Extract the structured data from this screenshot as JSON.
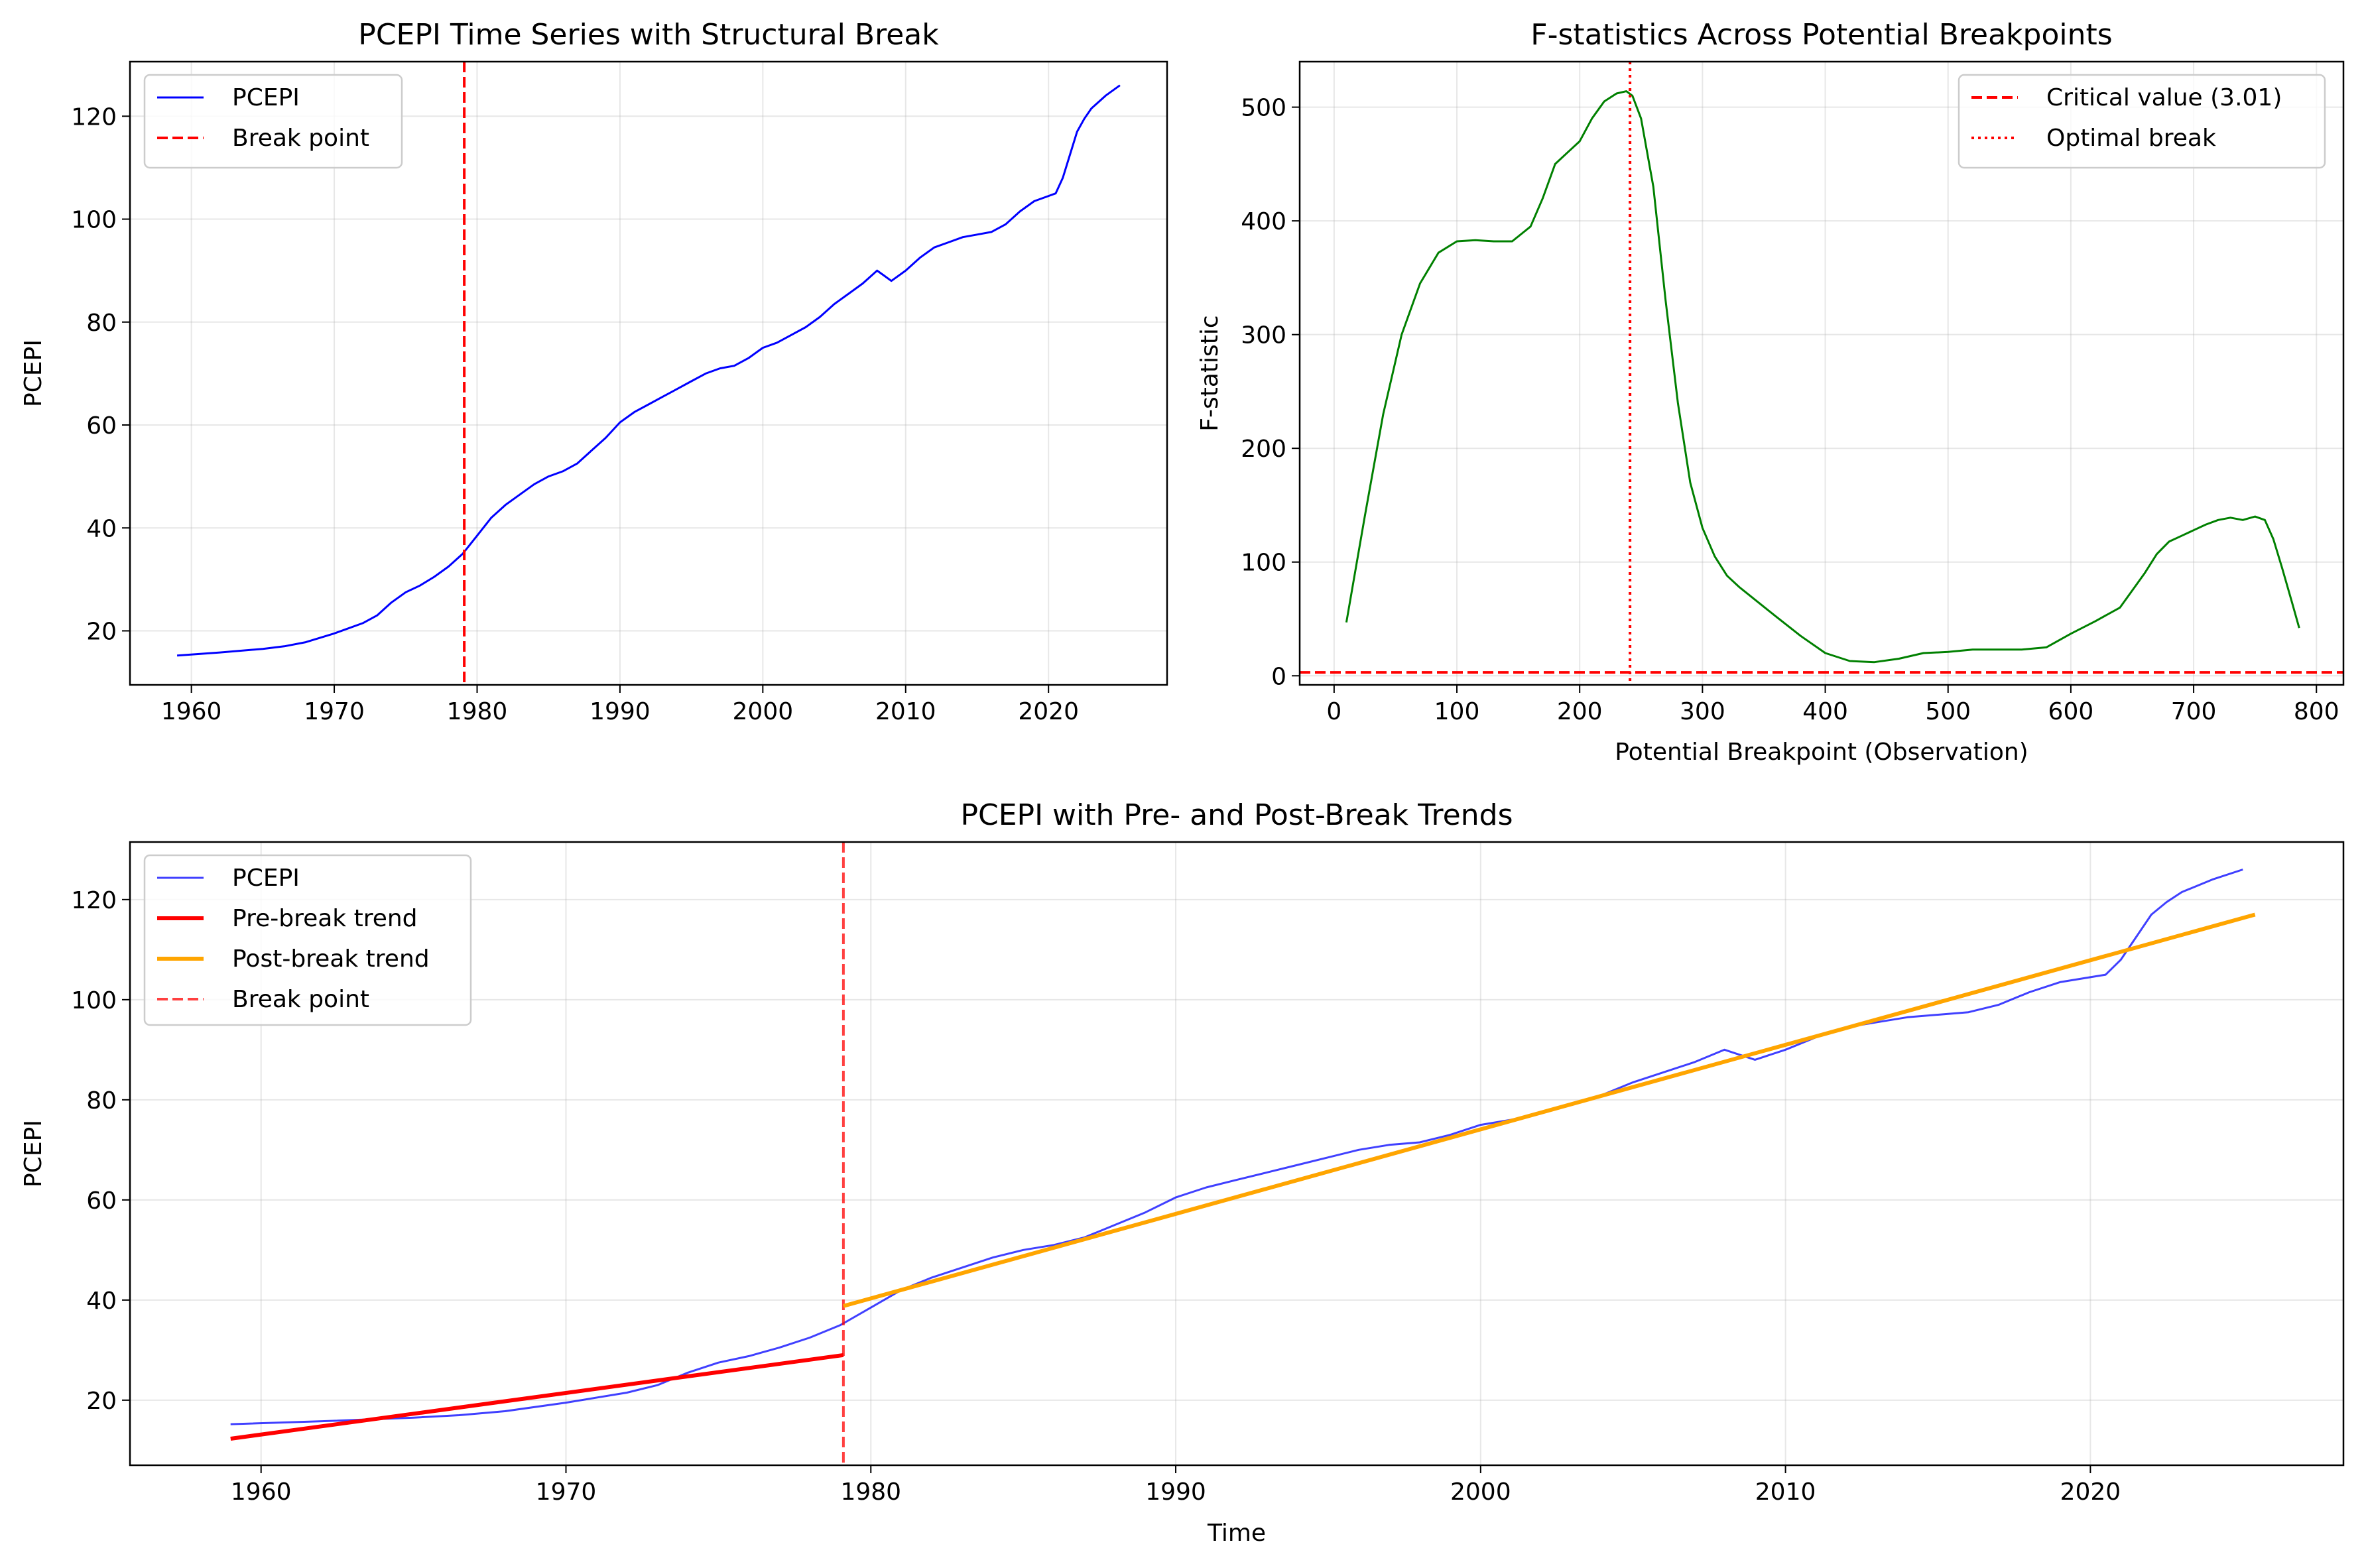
{
  "chart_data": [
    {
      "type": "line",
      "title": "PCEPI Time Series with Structural Break",
      "xlabel": "",
      "ylabel": "PCEPI",
      "xlim": [
        1955.7,
        2028.3
      ],
      "ylim": [
        9.5,
        130.6
      ],
      "xticks": [
        1960,
        1970,
        1980,
        1990,
        2000,
        2010,
        2020
      ],
      "yticks": [
        20,
        40,
        60,
        80,
        100,
        120
      ],
      "grid": true,
      "legend": "top-left",
      "break_year": 1979.1,
      "legend_entries": [
        "PCEPI",
        "Break point"
      ],
      "series": [
        {
          "name": "PCEPI",
          "color": "#0000ff",
          "x": [
            1959.0,
            1962.0,
            1965.0,
            1966.5,
            1968.0,
            1970.0,
            1972.0,
            1973.0,
            1974.0,
            1975.0,
            1976.0,
            1977.0,
            1978.0,
            1979.0,
            1980.0,
            1981.0,
            1982.0,
            1983.0,
            1984.0,
            1985.0,
            1986.0,
            1987.0,
            1988.0,
            1989.0,
            1990.0,
            1991.0,
            1992.0,
            1993.0,
            1994.0,
            1995.0,
            1996.0,
            1997.0,
            1998.0,
            1999.0,
            2000.0,
            2001.0,
            2002.0,
            2003.0,
            2004.0,
            2005.0,
            2006.0,
            2007.0,
            2008.0,
            2008.5,
            2009.0,
            2010.0,
            2011.0,
            2012.0,
            2013.0,
            2014.0,
            2015.0,
            2016.0,
            2017.0,
            2018.0,
            2019.0,
            2020.0,
            2020.5,
            2021.0,
            2021.5,
            2022.0,
            2022.5,
            2023.0,
            2024.0,
            2025.0
          ],
          "y": [
            15.2,
            15.8,
            16.5,
            17.0,
            17.8,
            19.5,
            21.5,
            23.0,
            25.5,
            27.5,
            28.8,
            30.5,
            32.5,
            35.0,
            38.5,
            42.0,
            44.5,
            46.5,
            48.5,
            50.0,
            51.0,
            52.5,
            55.0,
            57.5,
            60.5,
            62.5,
            64.0,
            65.5,
            67.0,
            68.5,
            70.0,
            71.0,
            71.5,
            73.0,
            75.0,
            76.0,
            77.5,
            79.0,
            81.0,
            83.5,
            85.5,
            87.5,
            90.0,
            89.0,
            88.0,
            90.0,
            92.5,
            94.5,
            95.5,
            96.5,
            97.0,
            97.5,
            99.0,
            101.5,
            103.5,
            104.5,
            105.0,
            108.0,
            112.5,
            117.0,
            119.5,
            121.5,
            124.0,
            126.0
          ]
        }
      ]
    },
    {
      "type": "line",
      "title": "F-statistics Across Potential Breakpoints",
      "xlabel": "Potential Breakpoint (Observation)",
      "ylabel": "F-statistic",
      "xlim": [
        -28,
        822
      ],
      "ylim": [
        -8,
        540
      ],
      "xticks": [
        0,
        100,
        200,
        300,
        400,
        500,
        600,
        700,
        800
      ],
      "yticks": [
        0,
        100,
        200,
        300,
        400,
        500
      ],
      "grid": true,
      "legend": "top-right",
      "critical_value": 3.01,
      "optimal_break": 241,
      "legend_entries": [
        "Critical value (3.01)",
        "Optimal break"
      ],
      "series": [
        {
          "name": "",
          "color": "#008000",
          "x": [
            10,
            25,
            40,
            55,
            70,
            85,
            100,
            115,
            130,
            145,
            160,
            170,
            180,
            190,
            200,
            210,
            220,
            230,
            238,
            243,
            250,
            260,
            270,
            280,
            290,
            300,
            310,
            320,
            330,
            345,
            360,
            380,
            400,
            420,
            440,
            460,
            480,
            500,
            520,
            540,
            560,
            580,
            600,
            620,
            640,
            660,
            670,
            680,
            690,
            700,
            710,
            720,
            730,
            740,
            750,
            758,
            765,
            772,
            780,
            786
          ],
          "y": [
            47,
            140,
            230,
            300,
            345,
            372,
            382,
            383,
            382,
            382,
            395,
            420,
            450,
            460,
            470,
            490,
            505,
            512,
            514,
            510,
            490,
            430,
            330,
            240,
            170,
            130,
            105,
            88,
            78,
            65,
            52,
            35,
            20,
            13,
            12,
            15,
            20,
            21,
            23,
            23,
            23,
            25,
            37,
            48,
            60,
            90,
            107,
            118,
            123,
            128,
            133,
            137,
            139,
            137,
            140,
            137,
            120,
            95,
            65,
            42
          ]
        }
      ]
    },
    {
      "type": "line",
      "title": "PCEPI with Pre- and Post-Break Trends",
      "xlabel": "Time",
      "ylabel": "PCEPI",
      "xlim": [
        1955.7,
        2028.3
      ],
      "ylim": [
        7.0,
        131.5
      ],
      "xticks": [
        1960,
        1970,
        1980,
        1990,
        2000,
        2010,
        2020
      ],
      "yticks": [
        20,
        40,
        60,
        80,
        100,
        120
      ],
      "grid": true,
      "legend": "top-left",
      "break_year": 1979.1,
      "legend_entries": [
        "PCEPI",
        "Pre-break trend",
        "Post-break trend",
        "Break point"
      ],
      "pre_trend": {
        "x": [
          1959.0,
          1979.1
        ],
        "y": [
          12.3,
          29.0
        ],
        "color": "#ff0000"
      },
      "post_trend": {
        "x": [
          1979.1,
          2025.4
        ],
        "y": [
          38.8,
          117.0
        ],
        "color": "#ffa500"
      }
    }
  ]
}
